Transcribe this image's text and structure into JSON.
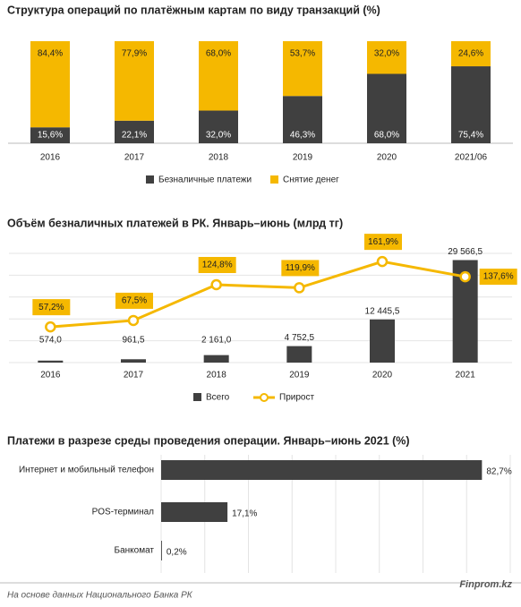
{
  "chart_data": [
    {
      "type": "stacked_bar",
      "title": "Структура операций по платёжным картам по виду транзакций (%)",
      "categories": [
        "2016",
        "2017",
        "2018",
        "2019",
        "2020",
        "2021/06"
      ],
      "ylim": [
        0,
        100
      ],
      "series": [
        {
          "name": "Безналичные платежи",
          "color": "#404040",
          "values": [
            15.6,
            22.1,
            32.0,
            46.3,
            68.0,
            75.4
          ],
          "value_labels": [
            "15,6%",
            "22,1%",
            "32,0%",
            "46,3%",
            "68,0%",
            "75,4%"
          ]
        },
        {
          "name": "Снятие денег",
          "color": "#f5b800",
          "values": [
            84.4,
            77.9,
            68.0,
            53.7,
            32.0,
            24.6
          ],
          "value_labels": [
            "84,4%",
            "77,9%",
            "68,0%",
            "53,7%",
            "32,0%",
            "24,6%"
          ]
        }
      ]
    },
    {
      "type": "bar_line",
      "title": "Объём безналичных платежей в РК. Январь–июнь (млрд тг)",
      "categories": [
        "2016",
        "2017",
        "2018",
        "2019",
        "2020",
        "2021"
      ],
      "ylim": [
        0,
        31500
      ],
      "y2lim": [
        0,
        175
      ],
      "grid": true,
      "series": [
        {
          "name": "Всего",
          "color": "#404040",
          "values": [
            574.0,
            961.5,
            2161.0,
            4752.5,
            12445.5,
            29566.5
          ],
          "value_labels": [
            "574,0",
            "961,5",
            "2 161,0",
            "4 752,5",
            "12 445,5",
            "29 566,5"
          ]
        },
        {
          "name": "Прирост",
          "color": "#f5b800",
          "axis": "y2",
          "values": [
            57.2,
            67.5,
            124.8,
            119.9,
            161.9,
            137.6
          ],
          "value_labels": [
            "57,2%",
            "67,5%",
            "124,8%",
            "119,9%",
            "161,9%",
            "137,6%"
          ]
        }
      ]
    },
    {
      "type": "hbar",
      "title": "Платежи в разрезе среды проведения операции. Январь–июнь  2021  (%)",
      "categories": [
        "Интернет и мобильный телефон",
        "POS-терминал",
        "Банкомат"
      ],
      "values": [
        82.7,
        17.1,
        0.2
      ],
      "value_labels": [
        "82,7%",
        "17,1%",
        "0,2%"
      ],
      "color": "#404040",
      "xlim": [
        0,
        90
      ],
      "grid": true
    }
  ],
  "source": "На основе данных Национального  Банка РК",
  "brand": "Finprom.kz"
}
